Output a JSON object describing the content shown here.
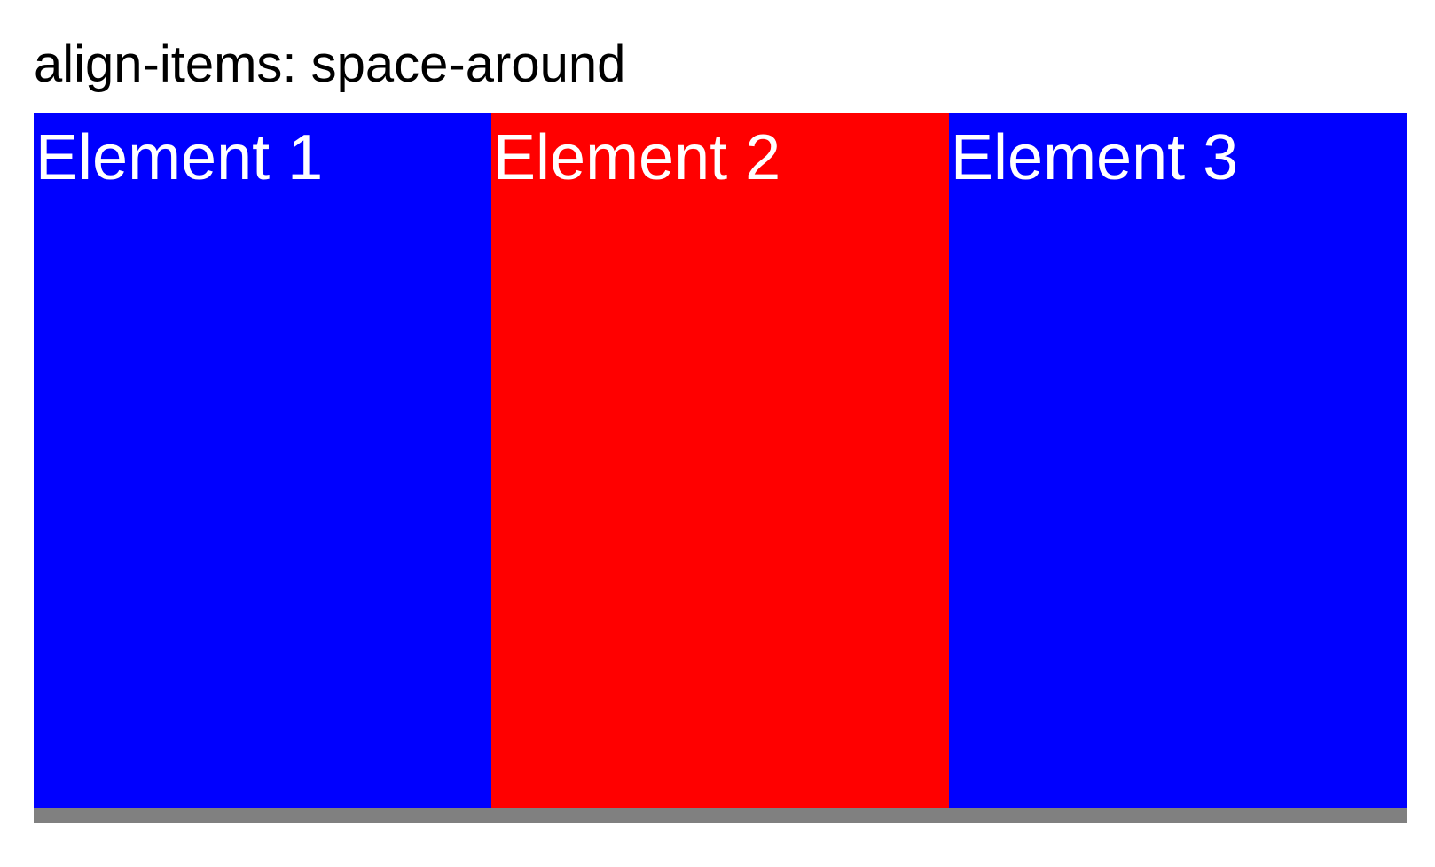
{
  "heading": "align-items: space-around",
  "container": {
    "color": "#808080"
  },
  "items": [
    {
      "label": "Element 1",
      "color": "#0000ff"
    },
    {
      "label": "Element 2",
      "color": "#ff0000"
    },
    {
      "label": "Element 3",
      "color": "#0000ff"
    }
  ]
}
